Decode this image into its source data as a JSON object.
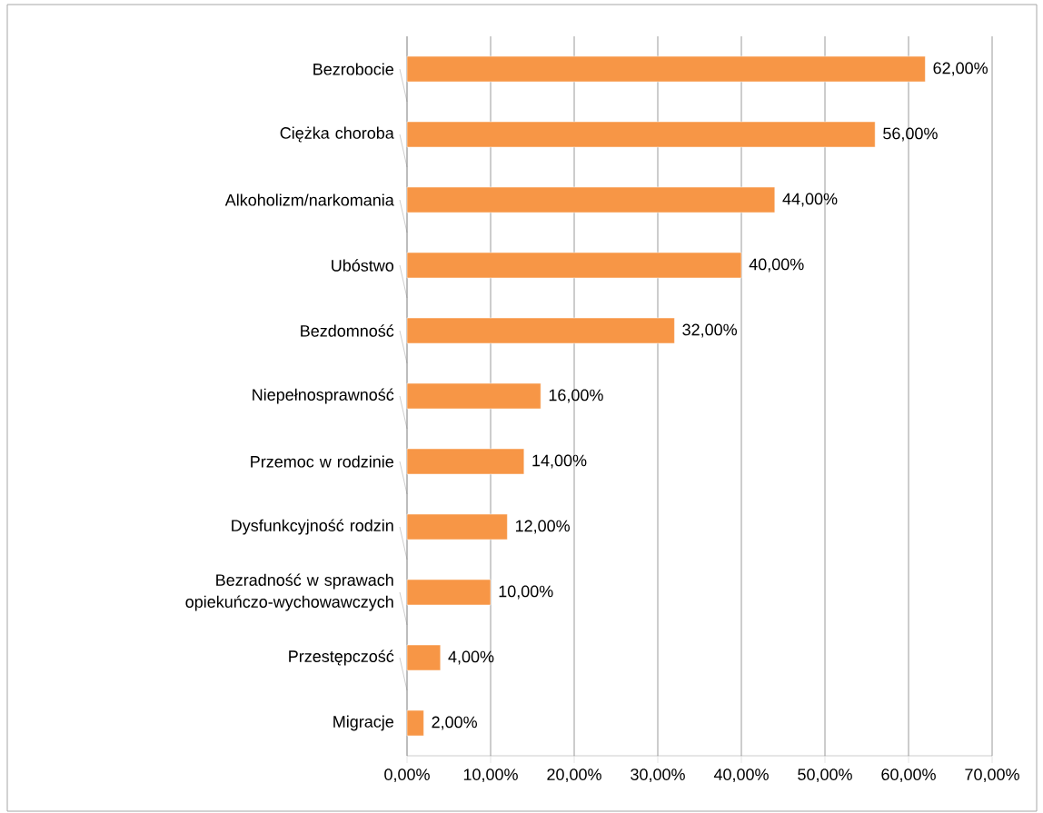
{
  "chart_data": {
    "type": "bar",
    "orientation": "horizontal",
    "categories": [
      "Bezrobocie",
      "Ciężka choroba",
      "Alkoholizm/narkomania",
      "Ubóstwo",
      "Bezdomność",
      "Niepełnosprawność",
      "Przemoc w rodzinie",
      "Dysfunkcyjność rodzin",
      "Bezradność w sprawach opiekuńczo-wychowawczych",
      "Przestępczość",
      "Migracje"
    ],
    "values": [
      62,
      56,
      44,
      40,
      32,
      16,
      14,
      12,
      10,
      4,
      2
    ],
    "value_labels": [
      "62,00%",
      "56,00%",
      "44,00%",
      "40,00%",
      "32,00%",
      "16,00%",
      "14,00%",
      "12,00%",
      "10,00%",
      "4,00%",
      "2,00%"
    ],
    "color": "#f79646",
    "xlim": [
      0,
      70
    ],
    "xticks": [
      {
        "value": 0,
        "label": "0,00%"
      },
      {
        "value": 10,
        "label": "10,00%"
      },
      {
        "value": 20,
        "label": "20,00%"
      },
      {
        "value": 30,
        "label": "30,00%"
      },
      {
        "value": 40,
        "label": "40,00%"
      },
      {
        "value": 50,
        "label": "50,00%"
      },
      {
        "value": 60,
        "label": "60,00%"
      },
      {
        "value": 70,
        "label": "70,00%"
      }
    ],
    "grid": "x"
  }
}
